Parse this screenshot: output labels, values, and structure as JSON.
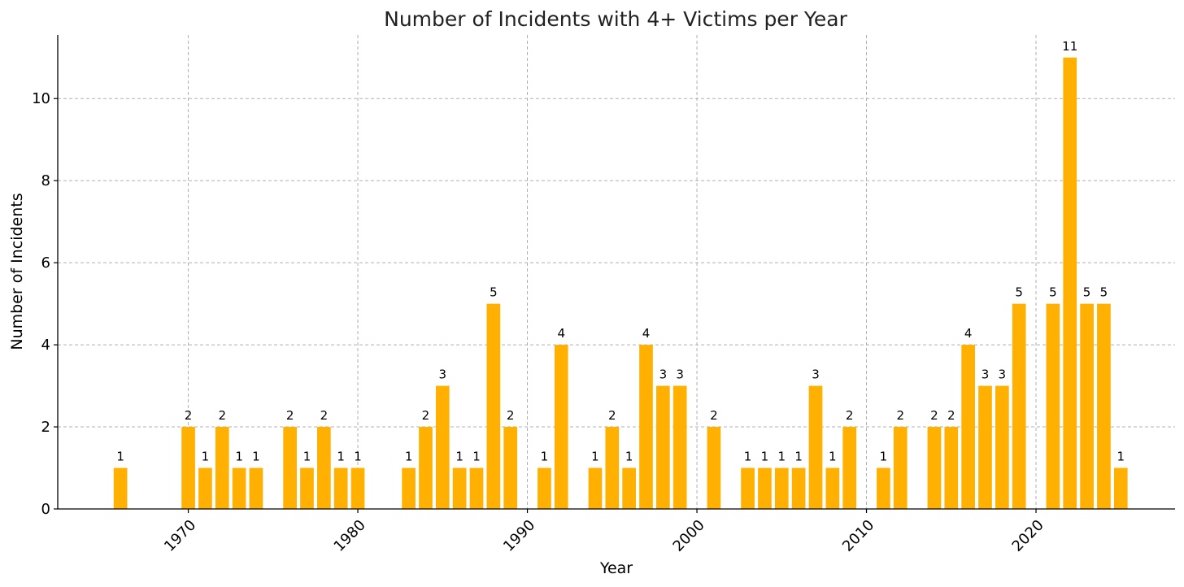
{
  "chart_data": {
    "type": "bar",
    "title": "Number of Incidents with 4+ Victims per Year",
    "xlabel": "Year",
    "ylabel": "Number of Incidents",
    "x": [
      1966,
      1970,
      1971,
      1972,
      1973,
      1974,
      1976,
      1977,
      1978,
      1979,
      1980,
      1983,
      1984,
      1985,
      1986,
      1987,
      1988,
      1989,
      1991,
      1992,
      1994,
      1995,
      1996,
      1997,
      1998,
      1999,
      2001,
      2003,
      2004,
      2005,
      2006,
      2007,
      2008,
      2009,
      2011,
      2012,
      2014,
      2015,
      2016,
      2017,
      2018,
      2019,
      2021,
      2022,
      2023,
      2024,
      2025
    ],
    "values": [
      1,
      2,
      1,
      2,
      1,
      1,
      2,
      1,
      2,
      1,
      1,
      1,
      2,
      3,
      1,
      1,
      5,
      2,
      1,
      4,
      1,
      2,
      1,
      4,
      3,
      3,
      2,
      1,
      1,
      1,
      1,
      3,
      1,
      2,
      1,
      2,
      2,
      2,
      4,
      3,
      3,
      5,
      5,
      11,
      5,
      5,
      1
    ],
    "xlim": [
      1962.3,
      2028.2
    ],
    "ylim": [
      0,
      11.55
    ],
    "xticks": [
      1970,
      1980,
      1990,
      2000,
      2010,
      2020
    ],
    "xtick_labels": [
      "1970",
      "1980",
      "1990",
      "2000",
      "2010",
      "2020"
    ],
    "yticks": [
      0,
      2,
      4,
      6,
      8,
      10
    ],
    "ytick_labels": [
      "0",
      "2",
      "4",
      "6",
      "8",
      "10"
    ],
    "grid": true,
    "bar_color": "#FFB000",
    "data_labels": true
  }
}
